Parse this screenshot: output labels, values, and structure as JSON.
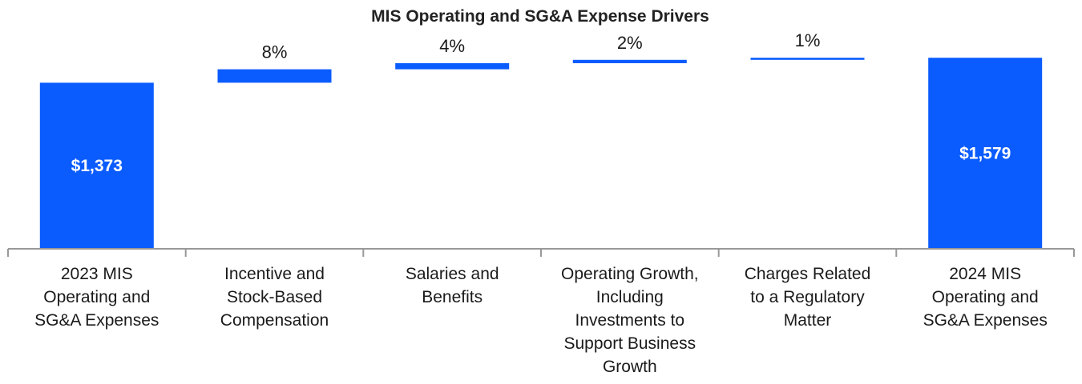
{
  "chart_data": {
    "type": "bar",
    "subtype": "waterfall",
    "title": "MIS Operating and SG&A Expense Drivers",
    "categories": [
      "2023 MIS Operating and SG&A Expenses",
      "Incentive and Stock-Based Compensation",
      "Salaries and Benefits",
      "Operating Growth, Including Investments to Support Business Growth",
      "Charges Related to a Regulatory Matter",
      "2024 MIS Operating and SG&A Expenses"
    ],
    "category_lines": [
      [
        "2023 MIS",
        "Operating and",
        "SG&A Expenses"
      ],
      [
        "Incentive and",
        "Stock-Based",
        "Compensation"
      ],
      [
        "Salaries and",
        "Benefits"
      ],
      [
        "Operating Growth,",
        "Including",
        "Investments to",
        "Support Business",
        "Growth"
      ],
      [
        "Charges Related",
        "to a Regulatory",
        "Matter"
      ],
      [
        "2024 MIS",
        "Operating and",
        "SG&A Expenses"
      ]
    ],
    "bar_kind": [
      "total",
      "change",
      "change",
      "change",
      "change",
      "total"
    ],
    "values": [
      1373,
      111,
      50,
      28,
      17,
      1579
    ],
    "labels": [
      "$1,373",
      "8%",
      "4%",
      "2%",
      "1%",
      "$1,579"
    ],
    "ylim": [
      0,
      1620
    ],
    "xlabel": "",
    "ylabel": "",
    "grid": false,
    "legend": "none",
    "colors": {
      "bar": "#0b5cff",
      "axis": "#999999",
      "text": "#1a1a1a",
      "title": "#222222",
      "total_label": "#ffffff"
    }
  }
}
